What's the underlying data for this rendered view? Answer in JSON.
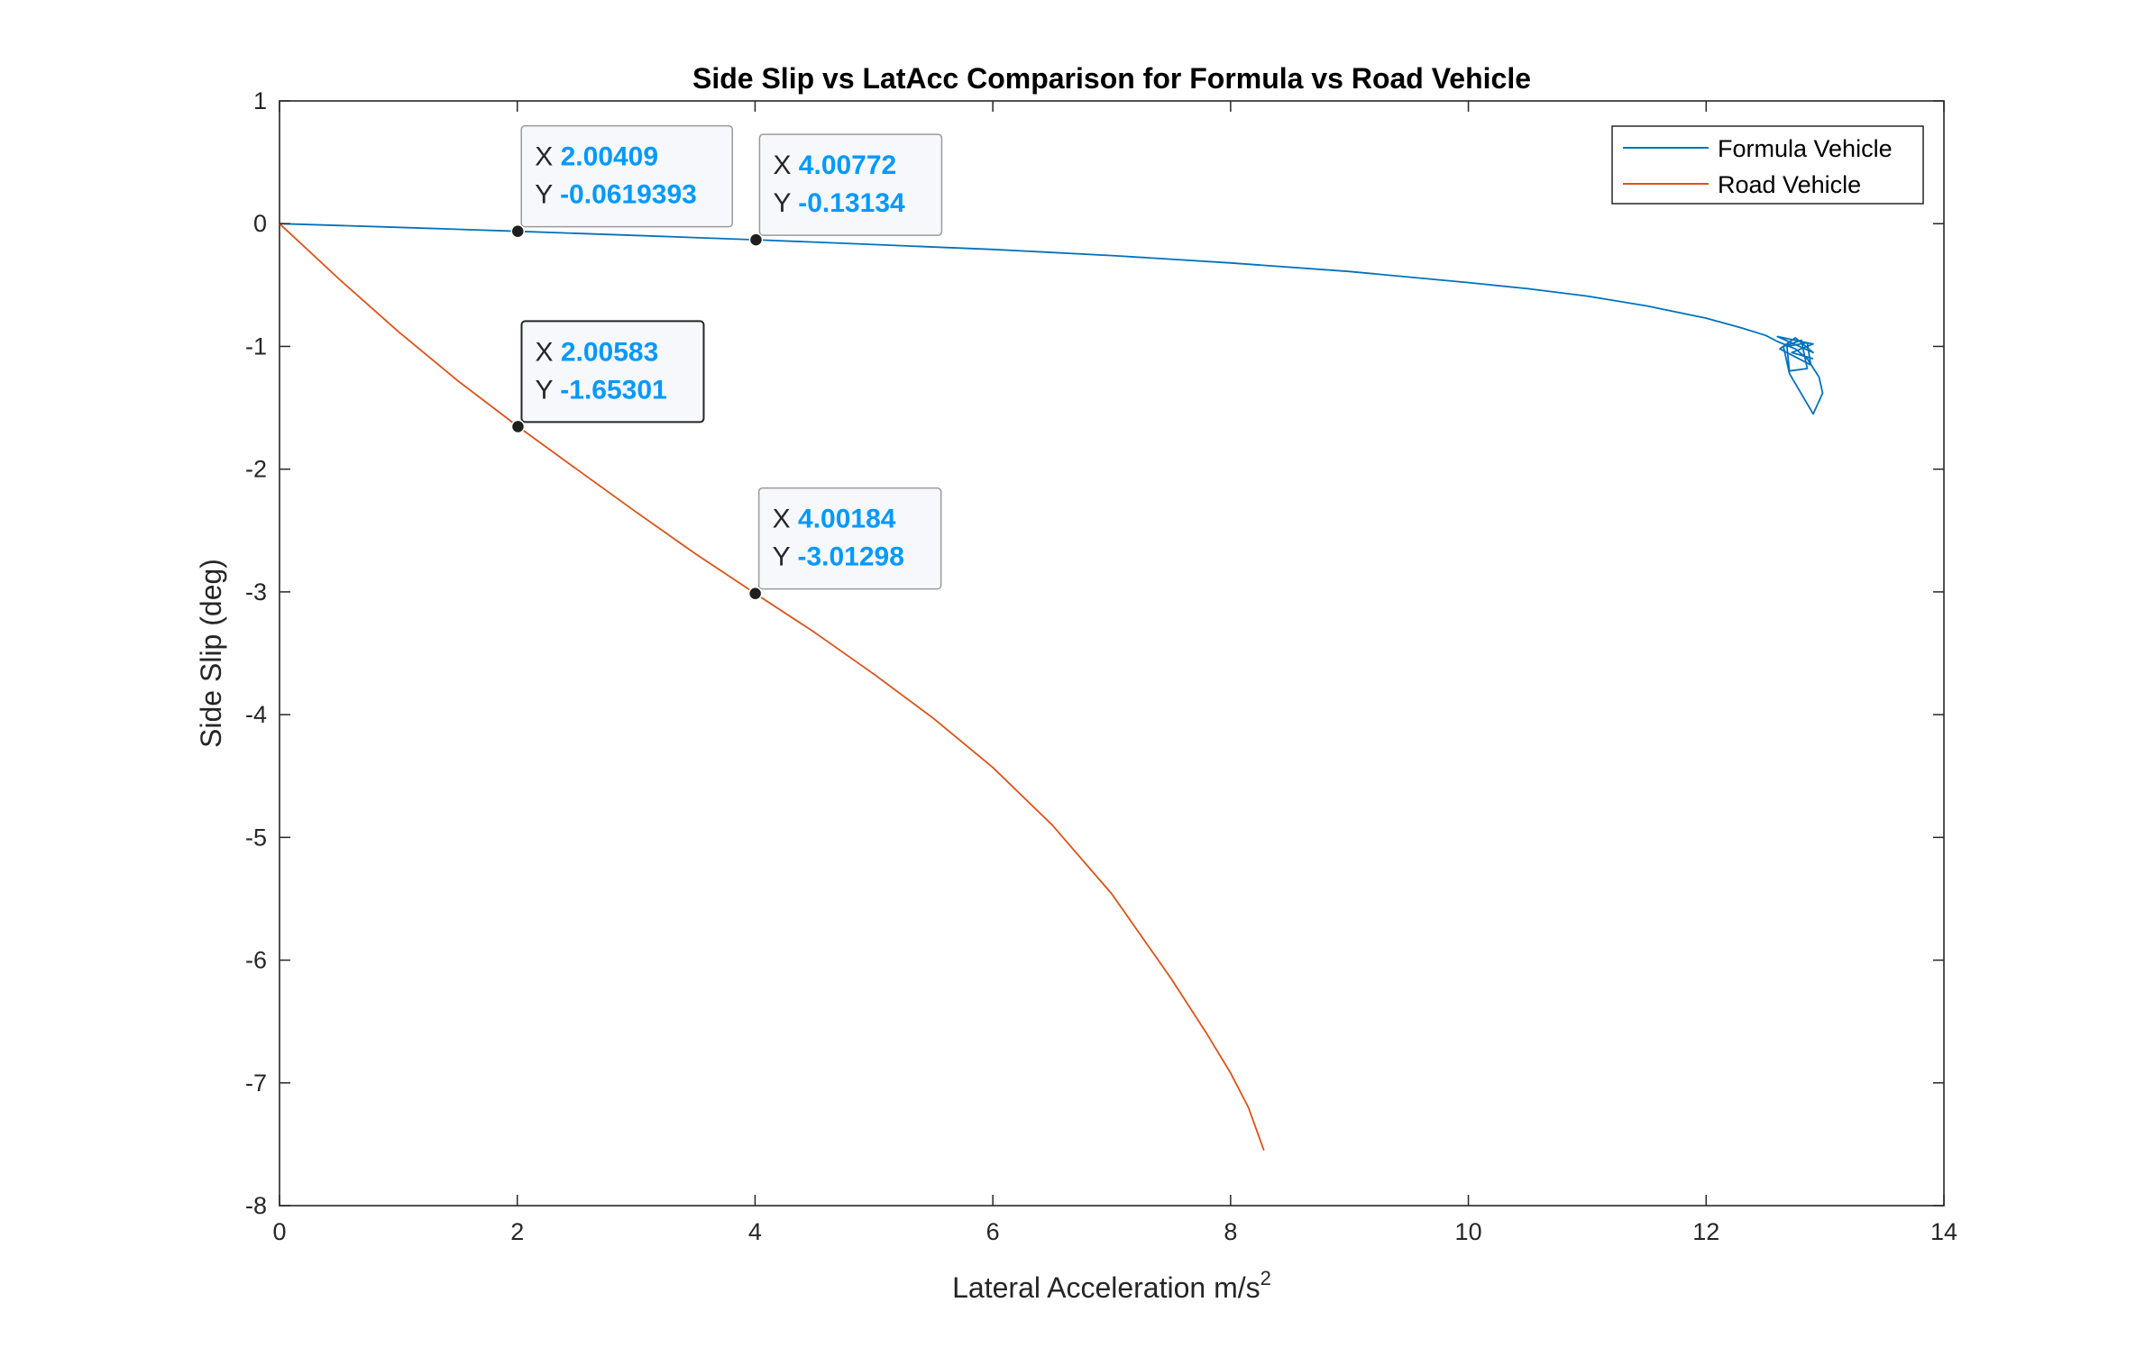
{
  "chart_data": {
    "type": "line",
    "title": "Side Slip vs LatAcc Comparison for Formula vs Road Vehicle",
    "xlabel": "Lateral Acceleration m/s",
    "xlabel_superscript": "2",
    "ylabel": "Side Slip (deg)",
    "xlim": [
      0,
      14
    ],
    "ylim": [
      -8,
      1
    ],
    "xticks": [
      0,
      2,
      4,
      6,
      8,
      10,
      12,
      14
    ],
    "yticks": [
      1,
      0,
      -1,
      -2,
      -3,
      -4,
      -5,
      -6,
      -7,
      -8
    ],
    "grid": false,
    "legend_position": "top-right",
    "series": [
      {
        "name": "Formula Vehicle",
        "color": "#0072BD",
        "x": [
          0,
          1,
          2.00409,
          3,
          4.00772,
          5,
          6,
          7,
          8,
          9,
          10,
          10.5,
          11,
          11.5,
          12,
          12.3,
          12.5,
          12.6,
          12.75,
          12.85,
          12.95,
          12.98,
          12.9,
          12.7,
          12.65,
          12.8,
          12.85,
          12.7,
          12.68,
          12.85,
          12.88,
          12.62,
          12.75,
          12.9,
          12.6,
          12.75,
          12.9,
          12.72,
          12.9
        ],
        "y": [
          0,
          -0.03,
          -0.0619393,
          -0.096,
          -0.13134,
          -0.17,
          -0.21,
          -0.26,
          -0.32,
          -0.39,
          -0.48,
          -0.53,
          -0.59,
          -0.67,
          -0.77,
          -0.85,
          -0.91,
          -0.96,
          -1.02,
          -1.1,
          -1.25,
          -1.38,
          -1.55,
          -1.22,
          -1.0,
          -0.95,
          -1.18,
          -1.2,
          -1.0,
          -0.97,
          -1.15,
          -1.02,
          -0.93,
          -1.05,
          -0.92,
          -0.95,
          -0.98,
          -1.05,
          -1.1
        ]
      },
      {
        "name": "Road Vehicle",
        "color": "#D95319",
        "x": [
          0,
          0.5,
          1,
          1.5,
          2.00583,
          2.5,
          3,
          3.5,
          4.00184,
          4.5,
          5,
          5.5,
          6,
          6.5,
          7,
          7.5,
          7.8,
          8.0,
          8.15,
          8.28
        ],
        "y": [
          0,
          -0.45,
          -0.88,
          -1.28,
          -1.65301,
          -2.0,
          -2.35,
          -2.69,
          -3.01298,
          -3.33,
          -3.67,
          -4.03,
          -4.43,
          -4.9,
          -5.46,
          -6.15,
          -6.6,
          -6.92,
          -7.2,
          -7.55
        ]
      }
    ],
    "datatips": [
      {
        "x_key": "X",
        "y_key": "Y",
        "x": 2.00409,
        "y": -0.0619393,
        "x_text": "2.00409",
        "y_text": "-0.0619393",
        "series": "Formula Vehicle",
        "highlighted": false
      },
      {
        "x_key": "X",
        "y_key": "Y",
        "x": 4.00772,
        "y": -0.13134,
        "x_text": "4.00772",
        "y_text": "-0.13134",
        "series": "Formula Vehicle",
        "highlighted": false
      },
      {
        "x_key": "X",
        "y_key": "Y",
        "x": 2.00583,
        "y": -1.65301,
        "x_text": "2.00583",
        "y_text": "-1.65301",
        "series": "Road Vehicle",
        "highlighted": true
      },
      {
        "x_key": "X",
        "y_key": "Y",
        "x": 4.00184,
        "y": -3.01298,
        "x_text": "4.00184",
        "y_text": "-3.01298",
        "series": "Road Vehicle",
        "highlighted": false
      }
    ]
  }
}
